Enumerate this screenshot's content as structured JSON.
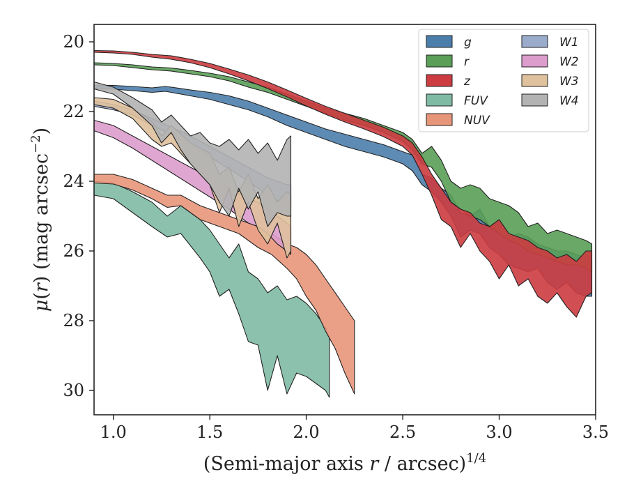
{
  "chart_data": {
    "type": "area",
    "xlabel": "(Semi-major axis r / arcsec)^1/4",
    "xlabel_parts": {
      "pre": "(Semi-major axis ",
      "var": "r",
      "post": " / arcsec)",
      "sup": "1/4"
    },
    "ylabel": "μ(r) (mag arcsec^−2)",
    "ylabel_parts": {
      "mu": "μ",
      "open": "(",
      "var": "r",
      "close": ")",
      "units": " (mag arcsec",
      "sup": "−2",
      "end": ")"
    },
    "xlim": [
      0.9,
      3.5
    ],
    "ylim": [
      30.7,
      19.5
    ],
    "y_inverted": true,
    "xticks": [
      1.0,
      1.5,
      2.0,
      2.5,
      3.0,
      3.5
    ],
    "xtick_labels": [
      "1.0",
      "1.5",
      "2.0",
      "2.5",
      "3.0",
      "3.5"
    ],
    "yticks": [
      20,
      22,
      24,
      26,
      28,
      30
    ],
    "ytick_labels": [
      "20",
      "22",
      "24",
      "26",
      "28",
      "30"
    ],
    "grid": false,
    "legend_position": "top-right",
    "legend_columns": 2,
    "series": [
      {
        "name": "g",
        "color": "#4c7eac",
        "x": [
          0.9,
          1.0,
          1.1,
          1.2,
          1.27,
          1.3,
          1.4,
          1.5,
          1.6,
          1.7,
          1.8,
          1.9,
          2.0,
          2.1,
          2.2,
          2.3,
          2.4,
          2.5,
          2.55,
          2.6,
          2.65,
          2.7,
          2.75,
          2.8,
          2.85,
          2.9,
          2.95,
          3.0,
          3.05,
          3.1,
          3.15,
          3.2,
          3.25,
          3.3,
          3.35,
          3.4,
          3.45,
          3.48
        ],
        "y1": [
          21.25,
          21.25,
          21.28,
          21.32,
          21.28,
          21.3,
          21.38,
          21.45,
          21.55,
          21.7,
          21.9,
          22.1,
          22.3,
          22.5,
          22.65,
          22.8,
          22.95,
          23.15,
          23.25,
          23.8,
          23.9,
          24.2,
          24.4,
          24.9,
          25.0,
          24.8,
          25.3,
          25.2,
          25.6,
          25.5,
          25.6,
          25.8,
          25.9,
          26.0,
          26.0,
          26.1,
          26.2,
          26.3
        ],
        "y2": [
          21.35,
          21.36,
          21.4,
          21.45,
          21.42,
          21.45,
          21.55,
          21.65,
          21.8,
          21.95,
          22.15,
          22.4,
          22.6,
          22.8,
          23.0,
          23.15,
          23.3,
          23.5,
          23.7,
          24.1,
          24.3,
          24.6,
          25.0,
          25.6,
          25.4,
          25.5,
          25.9,
          26.1,
          26.4,
          26.5,
          26.6,
          26.5,
          26.9,
          27.1,
          26.9,
          27.2,
          27.3,
          27.3
        ]
      },
      {
        "name": "r",
        "color": "#5a9e57",
        "x": [
          0.9,
          1.0,
          1.1,
          1.2,
          1.3,
          1.4,
          1.5,
          1.6,
          1.7,
          1.8,
          1.9,
          2.0,
          2.1,
          2.2,
          2.3,
          2.4,
          2.5,
          2.55,
          2.6,
          2.65,
          2.7,
          2.75,
          2.8,
          2.85,
          2.9,
          2.95,
          3.0,
          3.05,
          3.1,
          3.15,
          3.2,
          3.25,
          3.3,
          3.35,
          3.4,
          3.45,
          3.48
        ],
        "y1": [
          20.6,
          20.62,
          20.66,
          20.72,
          20.75,
          20.82,
          20.9,
          21.0,
          21.15,
          21.3,
          21.5,
          21.7,
          21.9,
          22.05,
          22.2,
          22.4,
          22.6,
          22.8,
          23.2,
          23.0,
          23.4,
          24.0,
          24.2,
          24.1,
          24.2,
          24.5,
          24.6,
          24.7,
          24.9,
          25.3,
          25.2,
          25.5,
          25.4,
          25.5,
          25.6,
          25.7,
          25.8
        ],
        "y2": [
          20.66,
          20.68,
          20.74,
          20.8,
          20.84,
          20.92,
          21.0,
          21.12,
          21.3,
          21.45,
          21.65,
          21.85,
          22.05,
          22.25,
          22.4,
          22.6,
          22.85,
          23.1,
          23.5,
          23.6,
          24.0,
          24.6,
          24.8,
          25.0,
          25.1,
          25.3,
          25.5,
          25.7,
          25.8,
          26.0,
          26.1,
          26.2,
          26.3,
          26.4,
          26.4,
          26.5,
          26.6
        ]
      },
      {
        "name": "z",
        "color": "#cc3c40",
        "x": [
          0.9,
          1.0,
          1.1,
          1.2,
          1.3,
          1.4,
          1.5,
          1.6,
          1.7,
          1.8,
          1.9,
          2.0,
          2.1,
          2.2,
          2.3,
          2.4,
          2.5,
          2.55,
          2.6,
          2.65,
          2.7,
          2.75,
          2.8,
          2.85,
          2.9,
          2.95,
          3.0,
          3.05,
          3.1,
          3.15,
          3.2,
          3.25,
          3.3,
          3.35,
          3.4,
          3.45,
          3.48
        ],
        "y1": [
          20.25,
          20.26,
          20.3,
          20.36,
          20.4,
          20.5,
          20.62,
          20.78,
          20.95,
          21.15,
          21.38,
          21.62,
          21.85,
          22.05,
          22.25,
          22.45,
          22.7,
          22.9,
          23.3,
          23.8,
          24.2,
          24.6,
          24.8,
          24.9,
          25.2,
          25.3,
          25.1,
          25.5,
          25.6,
          25.7,
          25.9,
          26.0,
          26.2,
          26.1,
          26.3,
          26.0,
          26.0
        ],
        "y2": [
          20.3,
          20.32,
          20.36,
          20.44,
          20.5,
          20.6,
          20.74,
          20.92,
          21.12,
          21.34,
          21.58,
          21.84,
          22.08,
          22.3,
          22.5,
          22.72,
          23.0,
          23.25,
          23.8,
          24.4,
          25.1,
          25.3,
          25.9,
          25.5,
          26.0,
          26.3,
          26.8,
          26.4,
          27.0,
          26.8,
          27.3,
          27.5,
          27.2,
          27.6,
          27.9,
          27.3,
          27.2
        ]
      },
      {
        "name": "FUV",
        "color": "#7fbaa4",
        "x": [
          0.9,
          1.0,
          1.1,
          1.2,
          1.28,
          1.35,
          1.45,
          1.5,
          1.55,
          1.6,
          1.65,
          1.7,
          1.75,
          1.8,
          1.85,
          1.9,
          1.95,
          2.0,
          2.05,
          2.1,
          2.12
        ],
        "y1": [
          24.0,
          24.05,
          24.3,
          24.6,
          25.0,
          24.7,
          25.1,
          25.4,
          25.8,
          26.2,
          25.8,
          26.6,
          26.8,
          27.2,
          27.0,
          27.4,
          27.3,
          27.5,
          27.8,
          28.2,
          28.5
        ],
        "y2": [
          24.4,
          24.5,
          24.9,
          25.3,
          25.6,
          25.5,
          26.2,
          26.6,
          27.3,
          27.1,
          27.8,
          28.6,
          28.7,
          30.0,
          29.0,
          30.1,
          29.5,
          29.6,
          29.8,
          30.0,
          30.2
        ]
      },
      {
        "name": "NUV",
        "color": "#e8967a",
        "x": [
          0.9,
          1.0,
          1.1,
          1.2,
          1.28,
          1.35,
          1.45,
          1.55,
          1.65,
          1.75,
          1.82,
          1.9,
          1.95,
          2.0,
          2.05,
          2.1,
          2.15,
          2.2,
          2.25
        ],
        "y1": [
          23.8,
          23.8,
          23.95,
          24.2,
          24.4,
          24.4,
          24.7,
          24.9,
          25.1,
          25.3,
          25.5,
          25.8,
          25.9,
          26.1,
          26.4,
          26.8,
          27.2,
          27.6,
          28.0
        ],
        "y2": [
          24.05,
          24.08,
          24.25,
          24.5,
          24.75,
          24.7,
          25.1,
          25.3,
          25.5,
          25.9,
          26.1,
          26.5,
          26.8,
          27.3,
          27.7,
          28.3,
          28.8,
          29.5,
          30.1
        ]
      },
      {
        "name": "W1",
        "color": "#9aabcc",
        "x": [
          0.9,
          1.0,
          1.1,
          1.2,
          1.3,
          1.4,
          1.5,
          1.6,
          1.7,
          1.8,
          1.9,
          1.92
        ],
        "y1": [
          21.7,
          21.8,
          21.95,
          22.2,
          22.45,
          22.7,
          23.0,
          23.3,
          23.6,
          23.9,
          24.1,
          24.1
        ],
        "y2": [
          21.85,
          21.95,
          22.1,
          22.4,
          22.65,
          22.95,
          23.3,
          23.65,
          24.0,
          24.4,
          24.7,
          24.8
        ]
      },
      {
        "name": "W2",
        "color": "#dc9ccc",
        "x": [
          0.9,
          1.0,
          1.1,
          1.2,
          1.3,
          1.4,
          1.5,
          1.6,
          1.7,
          1.75,
          1.8,
          1.85,
          1.9,
          1.92
        ],
        "y1": [
          22.25,
          22.4,
          22.7,
          23.0,
          23.3,
          23.6,
          23.9,
          24.2,
          24.5,
          24.6,
          24.8,
          25.0,
          25.2,
          25.3
        ],
        "y2": [
          22.55,
          22.75,
          23.05,
          23.4,
          23.75,
          24.1,
          24.45,
          24.8,
          25.2,
          25.3,
          25.5,
          25.8,
          26.0,
          26.1
        ]
      },
      {
        "name": "W3",
        "color": "#dfc19d",
        "x": [
          0.9,
          1.0,
          1.1,
          1.2,
          1.25,
          1.3,
          1.4,
          1.5,
          1.55,
          1.6,
          1.65,
          1.7,
          1.75,
          1.8,
          1.85,
          1.9,
          1.92
        ],
        "y1": [
          21.6,
          21.65,
          21.9,
          22.3,
          22.7,
          22.4,
          22.9,
          23.2,
          23.8,
          23.6,
          24.3,
          23.8,
          24.5,
          24.1,
          24.6,
          24.3,
          24.4
        ],
        "y2": [
          21.8,
          21.9,
          22.2,
          22.8,
          23.0,
          22.9,
          23.5,
          24.1,
          24.9,
          24.2,
          25.3,
          24.6,
          25.4,
          25.8,
          25.2,
          26.2,
          26.0
        ]
      },
      {
        "name": "W4",
        "color": "#b3b3b3",
        "x": [
          0.9,
          1.0,
          1.1,
          1.2,
          1.25,
          1.3,
          1.35,
          1.4,
          1.45,
          1.5,
          1.55,
          1.6,
          1.65,
          1.7,
          1.75,
          1.8,
          1.85,
          1.9,
          1.92
        ],
        "y1": [
          21.15,
          21.3,
          21.6,
          21.95,
          22.3,
          22.1,
          22.4,
          22.7,
          22.6,
          22.9,
          23.0,
          22.8,
          23.1,
          22.8,
          23.2,
          22.9,
          23.4,
          22.8,
          22.7
        ],
        "y2": [
          21.35,
          21.5,
          21.9,
          22.4,
          22.9,
          22.6,
          23.1,
          23.5,
          23.8,
          24.1,
          24.6,
          25.0,
          24.2,
          24.8,
          24.3,
          25.3,
          24.9,
          25.0,
          25.0
        ]
      }
    ]
  }
}
